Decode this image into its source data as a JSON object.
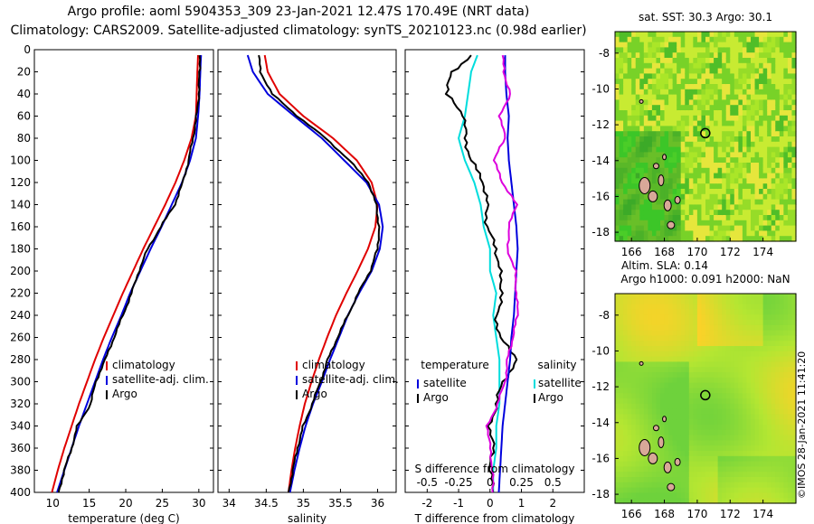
{
  "header": {
    "title_line1": "Argo profile: aoml 5904353_309 23-Jan-2021 12.47S 170.49E (NRT data)",
    "title_line2": "Climatology: CARS2009. Satellite-adjusted climatology: synTS_20210123.nc (0.98d earlier)"
  },
  "colors": {
    "climatology": "#e00000",
    "satellite": "#0000dd",
    "argo": "#000000",
    "temp_diff": "#00dddd",
    "sal_diff": "#dd00dd"
  },
  "credit": "©IMOS 28-Jan-2021 11:41:20",
  "chart_data": [
    {
      "type": "line",
      "id": "temperature",
      "xlabel": "temperature (deg C)",
      "ylabel": "",
      "xlim": [
        7.5,
        32
      ],
      "ylim": [
        400,
        0
      ],
      "xticks": [
        10,
        15,
        20,
        25,
        30
      ],
      "yticks": [
        0,
        20,
        40,
        60,
        80,
        100,
        120,
        140,
        160,
        180,
        200,
        220,
        240,
        260,
        280,
        300,
        320,
        340,
        360,
        380,
        400
      ],
      "legend": [
        "climatology",
        "satellite-adj. clim.",
        "Argo"
      ],
      "series": [
        {
          "name": "climatology",
          "depth": [
            5,
            20,
            40,
            60,
            80,
            100,
            120,
            140,
            160,
            180,
            200,
            220,
            240,
            260,
            280,
            300,
            320,
            340,
            360,
            380,
            400
          ],
          "values": [
            29.9,
            29.8,
            29.7,
            29.6,
            29.0,
            28.0,
            26.8,
            25.4,
            23.9,
            22.4,
            21.0,
            19.6,
            18.3,
            17.0,
            15.8,
            14.7,
            13.6,
            12.6,
            11.6,
            10.7,
            9.9
          ]
        },
        {
          "name": "satellite-adj. clim.",
          "depth": [
            5,
            20,
            40,
            60,
            80,
            100,
            120,
            140,
            160,
            180,
            200,
            220,
            240,
            260,
            280,
            300,
            320,
            340,
            360,
            380,
            400
          ],
          "values": [
            30.3,
            30.2,
            30.1,
            29.9,
            29.6,
            28.8,
            27.7,
            26.3,
            24.9,
            23.4,
            22.0,
            20.6,
            19.4,
            18.1,
            16.9,
            15.8,
            14.7,
            13.6,
            12.6,
            11.6,
            10.6
          ]
        },
        {
          "name": "Argo",
          "depth": [
            5,
            20,
            40,
            60,
            80,
            100,
            120,
            140,
            160,
            180,
            200,
            220,
            240,
            260,
            280,
            300,
            320,
            340,
            360,
            380,
            400
          ],
          "values": [
            30.1,
            30.1,
            30.0,
            29.7,
            29.2,
            28.6,
            27.8,
            26.7,
            24.8,
            23.0,
            21.8,
            20.8,
            19.6,
            18.4,
            17.2,
            15.9,
            15.2,
            13.4,
            12.6,
            11.6,
            10.8
          ]
        }
      ]
    },
    {
      "type": "line",
      "id": "salinity",
      "xlabel": "salinity",
      "ylabel": "",
      "xlim": [
        33.85,
        36.25
      ],
      "ylim": [
        400,
        0
      ],
      "xticks": [
        34,
        34.5,
        35,
        35.5,
        36
      ],
      "xticklabels": [
        "34",
        "34.5",
        "35",
        "35.5",
        "36"
      ],
      "legend": [
        "climatology",
        "satellite-adj. clim.",
        "Argo"
      ],
      "series": [
        {
          "name": "climatology",
          "depth": [
            5,
            20,
            40,
            60,
            80,
            100,
            120,
            140,
            160,
            180,
            200,
            220,
            240,
            260,
            280,
            300,
            320,
            340,
            360,
            380,
            400
          ],
          "values": [
            34.48,
            34.52,
            34.68,
            35.0,
            35.4,
            35.72,
            35.92,
            36.0,
            35.97,
            35.87,
            35.73,
            35.58,
            35.44,
            35.32,
            35.21,
            35.11,
            35.02,
            34.95,
            34.89,
            34.84,
            34.8
          ]
        },
        {
          "name": "satellite-adj. clim.",
          "depth": [
            5,
            20,
            40,
            60,
            80,
            100,
            120,
            140,
            160,
            180,
            200,
            220,
            240,
            260,
            280,
            300,
            320,
            340,
            360,
            380,
            400
          ],
          "values": [
            34.25,
            34.32,
            34.52,
            34.88,
            35.25,
            35.55,
            35.85,
            36.02,
            36.07,
            36.03,
            35.92,
            35.75,
            35.6,
            35.48,
            35.36,
            35.25,
            35.13,
            35.03,
            34.95,
            34.88,
            34.82
          ]
        },
        {
          "name": "Argo",
          "depth": [
            5,
            20,
            40,
            60,
            80,
            100,
            120,
            140,
            160,
            180,
            200,
            220,
            240,
            260,
            280,
            300,
            320,
            340,
            360,
            380,
            400
          ],
          "values": [
            34.4,
            34.42,
            34.58,
            34.92,
            35.3,
            35.62,
            35.88,
            35.98,
            36.02,
            36.0,
            35.9,
            35.74,
            35.6,
            35.46,
            35.33,
            35.23,
            35.12,
            35.0,
            34.92,
            34.86,
            34.8
          ]
        }
      ]
    },
    {
      "type": "line",
      "id": "differences",
      "xlabel": "T difference from climatology",
      "xlabel_top": "S difference from climatology",
      "xlim": [
        -2.7,
        3
      ],
      "ylim": [
        400,
        0
      ],
      "xticks": [
        -2,
        -1,
        0,
        1,
        2
      ],
      "xticks_top": [
        -0.5,
        -0.25,
        0,
        0.25,
        0.5
      ],
      "xticks_top_labels": [
        "-0.5",
        "-0.25",
        "0",
        "0.25",
        "0.5"
      ],
      "legend_left_title": "temperature",
      "legend_right_title": "salinity",
      "legend_left": [
        "satellite",
        "Argo"
      ],
      "legend_right": [
        "satellite",
        "Argo"
      ],
      "series": [
        {
          "name": "temperature satellite",
          "depth": [
            5,
            20,
            40,
            60,
            80,
            100,
            120,
            140,
            160,
            180,
            200,
            220,
            240,
            260,
            280,
            300,
            320,
            340,
            360,
            380,
            400
          ],
          "values": [
            -0.4,
            -0.6,
            -0.7,
            -0.8,
            -1.0,
            -0.8,
            -0.5,
            -0.3,
            -0.2,
            0.0,
            0.0,
            0.2,
            0.1,
            0.2,
            0.3,
            0.3,
            0.3,
            0.2,
            0.2,
            0.1,
            0.1
          ]
        },
        {
          "name": "temperature Argo",
          "depth": [
            5,
            20,
            40,
            60,
            80,
            100,
            120,
            140,
            160,
            180,
            200,
            220,
            240,
            260,
            280,
            300,
            320,
            340,
            360,
            380,
            400
          ],
          "values": [
            -0.6,
            -1.2,
            -1.4,
            -0.8,
            -0.8,
            -0.6,
            -0.2,
            -0.1,
            -0.1,
            0.2,
            0.3,
            0.4,
            0.2,
            0.3,
            0.9,
            0.4,
            0.2,
            0.0,
            0.1,
            0.0,
            0.1
          ]
        },
        {
          "name": "salinity satellite",
          "depth": [
            5,
            20,
            40,
            60,
            80,
            100,
            120,
            140,
            160,
            180,
            200,
            220,
            240,
            260,
            280,
            300,
            320,
            340,
            360,
            380,
            400
          ],
          "values": [
            0.12,
            0.12,
            0.13,
            0.15,
            0.14,
            0.15,
            0.17,
            0.19,
            0.21,
            0.22,
            0.21,
            0.2,
            0.19,
            0.17,
            0.16,
            0.14,
            0.12,
            0.1,
            0.09,
            0.08,
            0.07
          ]
        },
        {
          "name": "salinity Argo",
          "depth": [
            5,
            20,
            40,
            60,
            80,
            100,
            120,
            140,
            160,
            180,
            200,
            220,
            240,
            260,
            280,
            300,
            320,
            340,
            360,
            380,
            400
          ],
          "values": [
            0.1,
            0.11,
            0.16,
            0.08,
            0.12,
            0.03,
            0.1,
            0.21,
            0.15,
            0.14,
            0.2,
            0.21,
            0.22,
            0.18,
            0.14,
            0.12,
            0.06,
            -0.02,
            0.0,
            0.02,
            0.02
          ]
        }
      ]
    },
    {
      "type": "heatmap",
      "id": "sst_map",
      "title": "sat. SST: 30.3 Argo: 30.1",
      "xlim": [
        165,
        176
      ],
      "ylim": [
        -18.5,
        -6.8
      ],
      "xticks": [
        166,
        168,
        170,
        172,
        174
      ],
      "yticks": [
        -8,
        -10,
        -12,
        -14,
        -16,
        -18
      ],
      "marker": {
        "lon": 170.49,
        "lat": -12.47
      }
    },
    {
      "type": "heatmap",
      "id": "sla_map",
      "title_line1": "Altim. SLA: 0.14",
      "title_line2": "Argo h1000: 0.091 h2000: NaN",
      "xlim": [
        165,
        176
      ],
      "ylim": [
        -18.5,
        -6.8
      ],
      "xticks": [
        166,
        168,
        170,
        172,
        174
      ],
      "yticks": [
        -8,
        -10,
        -12,
        -14,
        -16,
        -18
      ],
      "marker": {
        "lon": 170.49,
        "lat": -12.47
      }
    }
  ]
}
